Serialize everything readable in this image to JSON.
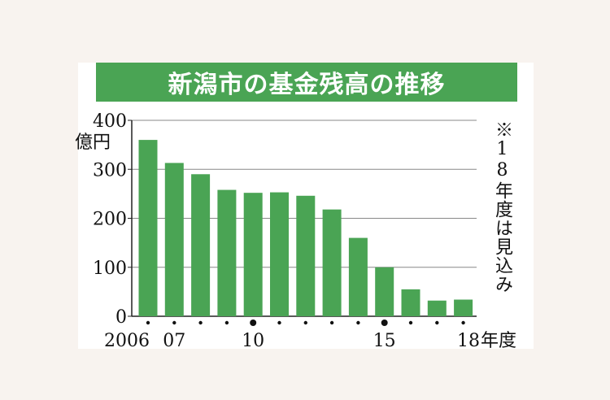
{
  "title": "新潟市の基金残高の推移",
  "note": "※18年度は見込み",
  "colors": {
    "bar": "#4aa454",
    "title_bg": "#4aa454",
    "grid": "#888888"
  },
  "chart_data": {
    "type": "bar",
    "title": "新潟市の基金残高の推移",
    "ylabel": "億円",
    "xlabel": "",
    "x_unit": "年度",
    "ylim": [
      0,
      400
    ],
    "yticks": [
      0,
      100,
      200,
      300,
      400
    ],
    "categories": [
      "2006",
      "07",
      "08",
      "09",
      "10",
      "11",
      "12",
      "13",
      "14",
      "15",
      "16",
      "17",
      "18"
    ],
    "x_tick_labels": [
      "2006",
      "07",
      "",
      "",
      "10",
      "",
      "",
      "",
      "",
      "15",
      "",
      "",
      "18"
    ],
    "values": [
      360,
      313,
      290,
      258,
      252,
      253,
      246,
      218,
      160,
      100,
      55,
      32,
      34
    ],
    "grid": true,
    "annotation": "※18年度は見込み"
  }
}
